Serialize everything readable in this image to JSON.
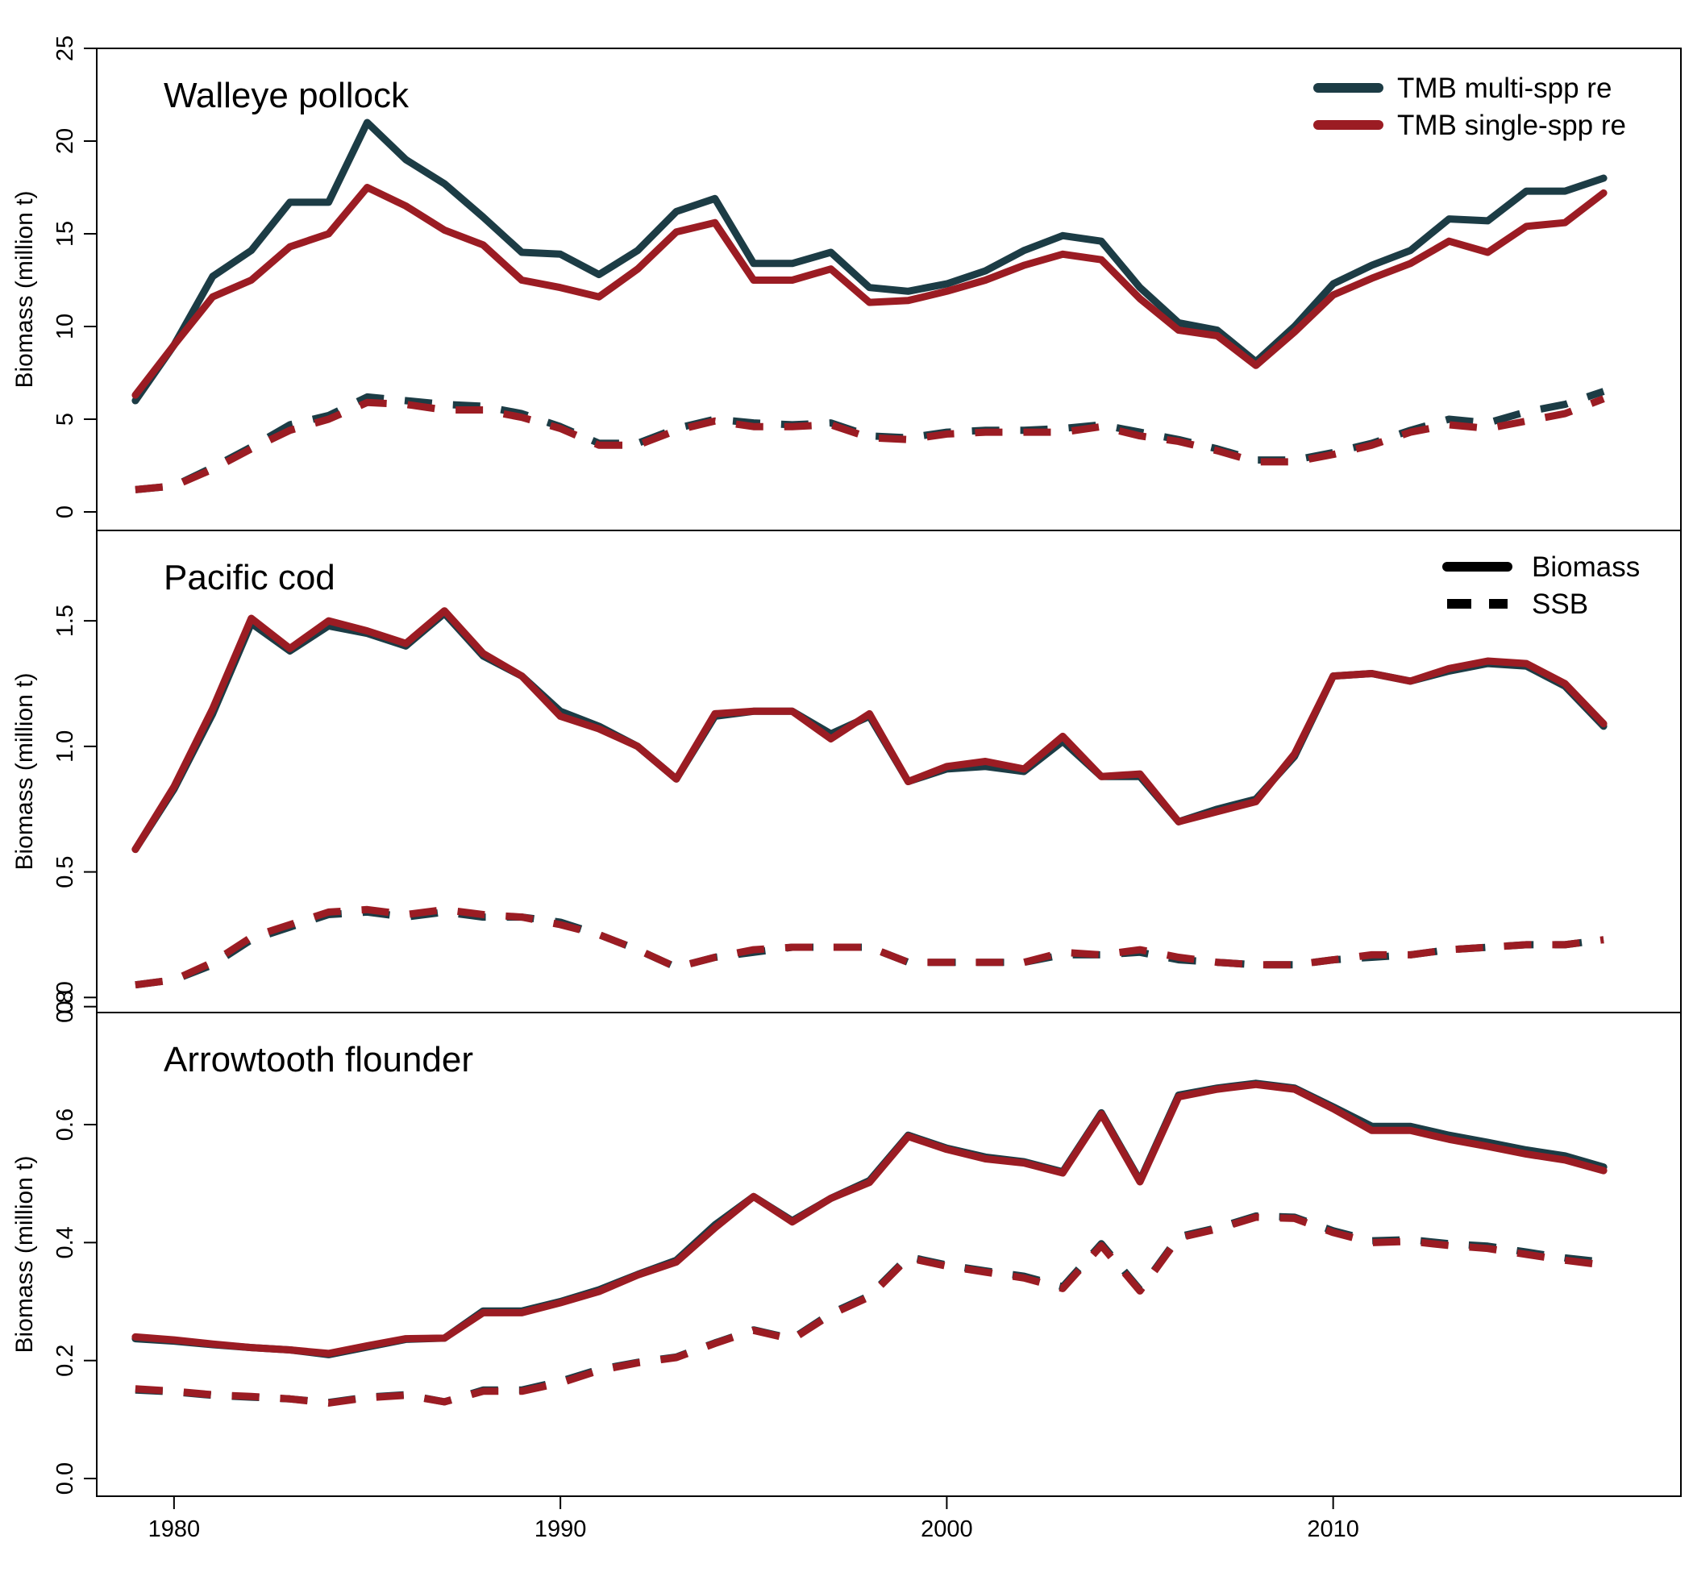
{
  "chart_data": {
    "type": "line",
    "x": [
      1979,
      1980,
      1981,
      1982,
      1983,
      1984,
      1985,
      1986,
      1987,
      1988,
      1989,
      1990,
      1991,
      1992,
      1993,
      1994,
      1995,
      1996,
      1997,
      1998,
      1999,
      2000,
      2001,
      2002,
      2003,
      2004,
      2005,
      2006,
      2007,
      2008,
      2009,
      2010,
      2011,
      2012,
      2013,
      2014,
      2015,
      2016,
      2017
    ],
    "xaxis": {
      "ticks": [
        1980,
        1990,
        2000,
        2010
      ],
      "range": [
        1978,
        2019
      ]
    },
    "colors": {
      "multi": "#1c3c45",
      "single": "#9b1c23"
    },
    "legend": {
      "models": [
        {
          "label": "TMB multi-spp re",
          "color": "#1c3c45"
        },
        {
          "label": "TMB single-spp re",
          "color": "#9b1c23"
        }
      ],
      "linetypes": [
        {
          "label": "Biomass",
          "style": "solid"
        },
        {
          "label": "SSB",
          "style": "dashed"
        }
      ]
    },
    "panels": [
      {
        "title": "Walleye pollock",
        "ylabel": "Biomass (million t)",
        "ylim": [
          -1,
          25
        ],
        "yticks": [
          "0",
          "5",
          "10",
          "15",
          "20",
          "25"
        ],
        "series": [
          {
            "model": "multi",
            "metric": "Biomass",
            "values": [
              6.0,
              9.0,
              12.7,
              14.1,
              16.7,
              16.7,
              21.0,
              19.0,
              17.7,
              15.9,
              14.0,
              13.9,
              12.8,
              14.1,
              16.2,
              16.9,
              13.4,
              13.4,
              14.0,
              12.1,
              11.9,
              12.3,
              13.0,
              14.1,
              14.9,
              14.6,
              12.1,
              10.2,
              9.8,
              8.1,
              10.0,
              12.3,
              13.3,
              14.1,
              15.8,
              15.7,
              17.3,
              17.3,
              18.0
            ]
          },
          {
            "model": "single",
            "metric": "Biomass",
            "values": [
              6.3,
              9.0,
              11.6,
              12.5,
              14.3,
              15.0,
              17.5,
              16.5,
              15.2,
              14.4,
              12.5,
              12.1,
              11.6,
              13.1,
              15.1,
              15.6,
              12.5,
              12.5,
              13.1,
              11.3,
              11.4,
              11.9,
              12.5,
              13.3,
              13.9,
              13.6,
              11.5,
              9.8,
              9.5,
              7.9,
              9.7,
              11.7,
              12.6,
              13.4,
              14.6,
              14.0,
              15.4,
              15.6,
              17.2
            ]
          },
          {
            "model": "multi",
            "metric": "SSB",
            "values": [
              1.2,
              1.4,
              2.4,
              3.5,
              4.7,
              5.2,
              6.2,
              6.0,
              5.8,
              5.7,
              5.3,
              4.6,
              3.7,
              3.7,
              4.5,
              5.0,
              4.8,
              4.7,
              4.8,
              4.1,
              4.0,
              4.3,
              4.4,
              4.4,
              4.5,
              4.7,
              4.3,
              3.9,
              3.4,
              2.8,
              2.8,
              3.2,
              3.7,
              4.4,
              5.0,
              4.8,
              5.4,
              5.8,
              6.5
            ]
          },
          {
            "model": "single",
            "metric": "SSB",
            "values": [
              1.2,
              1.4,
              2.3,
              3.4,
              4.4,
              5.0,
              5.9,
              5.8,
              5.5,
              5.5,
              5.1,
              4.5,
              3.6,
              3.6,
              4.4,
              4.9,
              4.6,
              4.6,
              4.7,
              4.0,
              3.9,
              4.2,
              4.3,
              4.3,
              4.3,
              4.6,
              4.1,
              3.8,
              3.3,
              2.7,
              2.7,
              3.1,
              3.6,
              4.3,
              4.7,
              4.5,
              4.9,
              5.3,
              6.1
            ]
          }
        ]
      },
      {
        "title": "Pacific cod",
        "ylabel": "Biomass (million t)",
        "ylim": [
          -0.06,
          1.86
        ],
        "yticks": [
          "0.0",
          "0.5",
          "1.0",
          "1.5"
        ],
        "series": [
          {
            "model": "multi",
            "metric": "Biomass",
            "values": [
              0.59,
              0.83,
              1.13,
              1.49,
              1.38,
              1.48,
              1.45,
              1.4,
              1.53,
              1.36,
              1.28,
              1.14,
              1.08,
              1.0,
              0.87,
              1.12,
              1.14,
              1.14,
              1.05,
              1.12,
              0.86,
              0.91,
              0.92,
              0.9,
              1.02,
              0.88,
              0.88,
              0.7,
              0.75,
              0.79,
              0.96,
              1.28,
              1.29,
              1.26,
              1.3,
              1.33,
              1.32,
              1.24,
              1.08
            ]
          },
          {
            "model": "single",
            "metric": "Biomass",
            "values": [
              0.59,
              0.84,
              1.15,
              1.51,
              1.39,
              1.5,
              1.46,
              1.41,
              1.54,
              1.37,
              1.28,
              1.12,
              1.07,
              1.0,
              0.87,
              1.13,
              1.14,
              1.14,
              1.03,
              1.13,
              0.86,
              0.92,
              0.94,
              0.91,
              1.04,
              0.88,
              0.89,
              0.7,
              0.74,
              0.78,
              0.97,
              1.28,
              1.29,
              1.26,
              1.31,
              1.34,
              1.33,
              1.25,
              1.09
            ]
          },
          {
            "model": "multi",
            "metric": "SSB",
            "values": [
              0.05,
              0.07,
              0.13,
              0.23,
              0.28,
              0.33,
              0.34,
              0.32,
              0.34,
              0.32,
              0.32,
              0.3,
              0.25,
              0.19,
              0.12,
              0.16,
              0.18,
              0.2,
              0.2,
              0.2,
              0.14,
              0.14,
              0.14,
              0.14,
              0.17,
              0.17,
              0.18,
              0.15,
              0.14,
              0.13,
              0.13,
              0.15,
              0.16,
              0.17,
              0.19,
              0.2,
              0.21,
              0.21,
              0.23
            ]
          },
          {
            "model": "single",
            "metric": "SSB",
            "values": [
              0.05,
              0.07,
              0.14,
              0.24,
              0.29,
              0.34,
              0.35,
              0.33,
              0.35,
              0.33,
              0.32,
              0.29,
              0.25,
              0.19,
              0.12,
              0.16,
              0.19,
              0.2,
              0.2,
              0.2,
              0.14,
              0.14,
              0.14,
              0.14,
              0.18,
              0.17,
              0.19,
              0.16,
              0.14,
              0.13,
              0.13,
              0.15,
              0.17,
              0.17,
              0.19,
              0.2,
              0.21,
              0.21,
              0.23
            ]
          }
        ]
      },
      {
        "title": "Arrowtooth flounder",
        "ylabel": "Biomass (million t)",
        "ylim": [
          -0.03,
          0.79
        ],
        "yticks": [
          "0.0",
          "0.2",
          "0.4",
          "0.6",
          "0.8"
        ],
        "series": [
          {
            "model": "multi",
            "metric": "Biomass",
            "values": [
              0.237,
              0.233,
              0.227,
              0.222,
              0.218,
              0.21,
              0.223,
              0.236,
              0.238,
              0.284,
              0.284,
              0.3,
              0.32,
              0.346,
              0.37,
              0.43,
              0.478,
              0.437,
              0.475,
              0.505,
              0.582,
              0.56,
              0.545,
              0.537,
              0.52,
              0.62,
              0.505,
              0.65,
              0.662,
              0.67,
              0.662,
              0.63,
              0.597,
              0.597,
              0.582,
              0.57,
              0.557,
              0.547,
              0.528
            ]
          },
          {
            "model": "single",
            "metric": "Biomass",
            "values": [
              0.24,
              0.235,
              0.228,
              0.222,
              0.218,
              0.212,
              0.225,
              0.237,
              0.238,
              0.281,
              0.281,
              0.298,
              0.317,
              0.345,
              0.367,
              0.425,
              0.478,
              0.435,
              0.475,
              0.502,
              0.58,
              0.558,
              0.542,
              0.535,
              0.518,
              0.618,
              0.503,
              0.647,
              0.66,
              0.668,
              0.66,
              0.627,
              0.59,
              0.59,
              0.575,
              0.563,
              0.55,
              0.54,
              0.522
            ]
          },
          {
            "model": "multi",
            "metric": "SSB",
            "values": [
              0.15,
              0.147,
              0.141,
              0.138,
              0.135,
              0.129,
              0.138,
              0.142,
              0.13,
              0.15,
              0.15,
              0.165,
              0.185,
              0.197,
              0.206,
              0.23,
              0.252,
              0.237,
              0.28,
              0.31,
              0.376,
              0.362,
              0.352,
              0.343,
              0.325,
              0.398,
              0.32,
              0.41,
              0.425,
              0.445,
              0.443,
              0.42,
              0.403,
              0.405,
              0.398,
              0.394,
              0.384,
              0.374,
              0.367
            ]
          },
          {
            "model": "single",
            "metric": "SSB",
            "values": [
              0.152,
              0.148,
              0.142,
              0.139,
              0.135,
              0.128,
              0.137,
              0.141,
              0.13,
              0.148,
              0.148,
              0.162,
              0.183,
              0.196,
              0.205,
              0.229,
              0.251,
              0.236,
              0.278,
              0.308,
              0.374,
              0.36,
              0.35,
              0.34,
              0.322,
              0.395,
              0.318,
              0.408,
              0.423,
              0.443,
              0.441,
              0.417,
              0.4,
              0.402,
              0.395,
              0.39,
              0.38,
              0.37,
              0.362
            ]
          }
        ]
      }
    ]
  }
}
